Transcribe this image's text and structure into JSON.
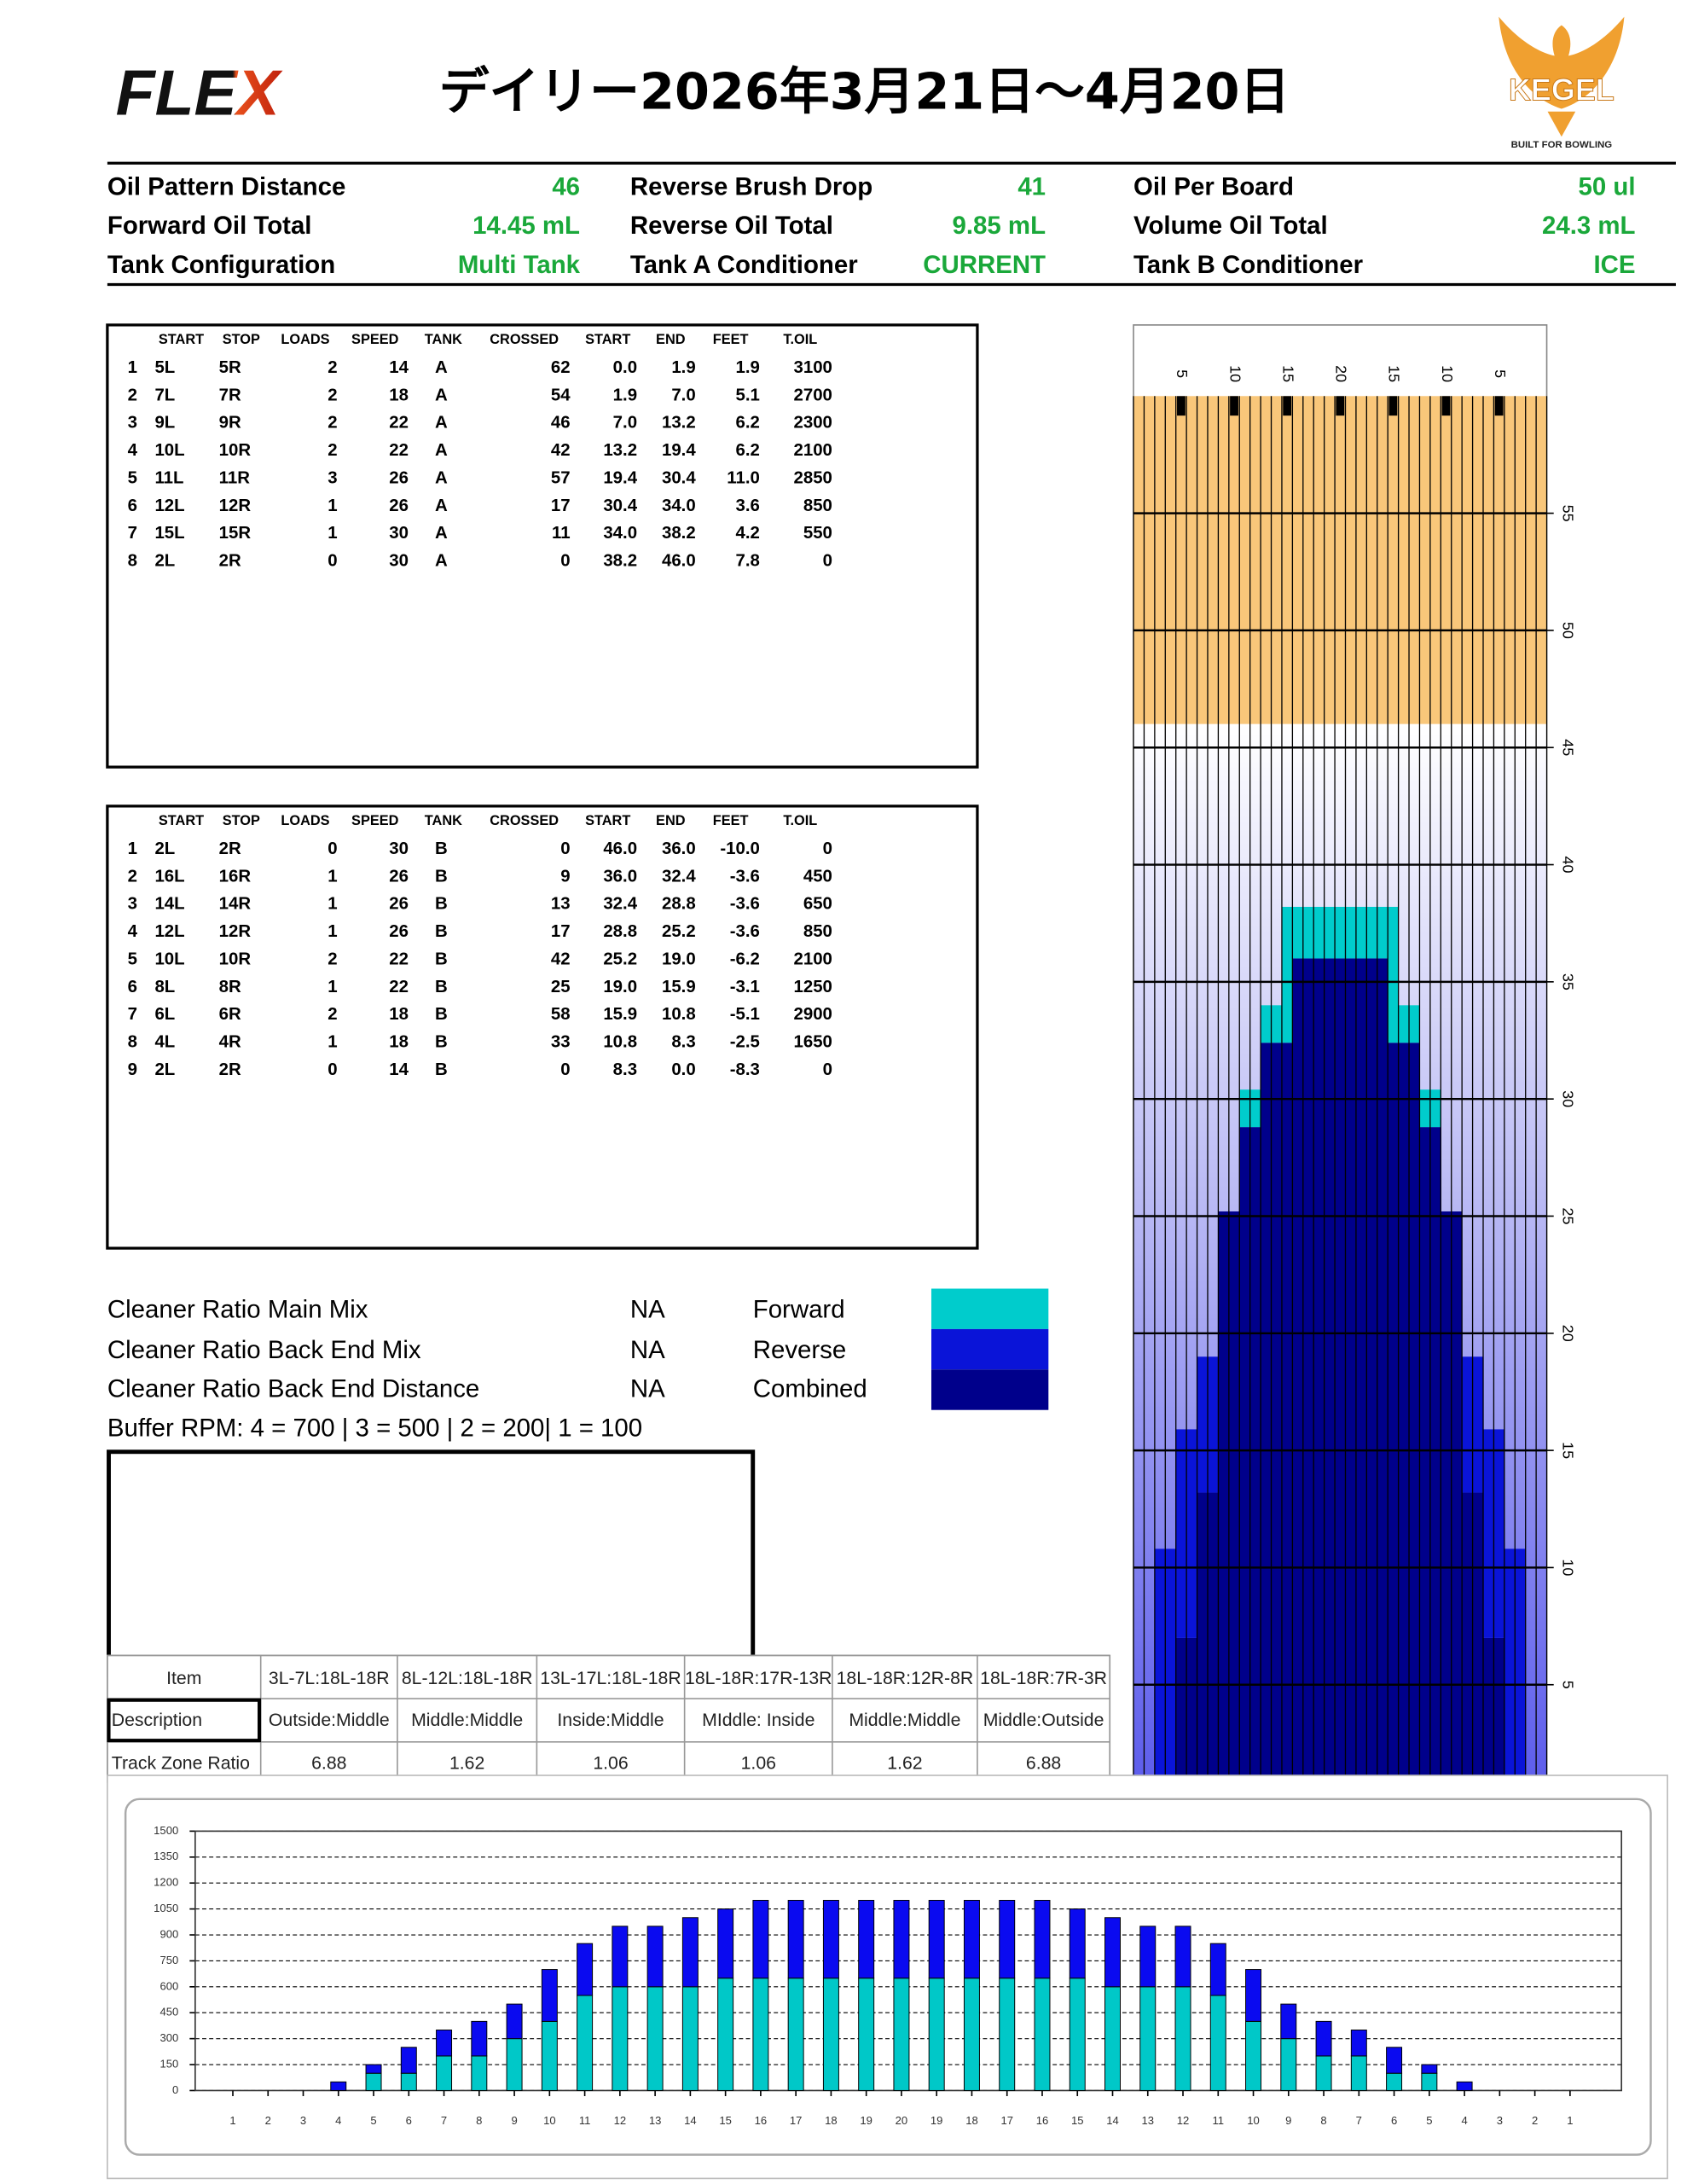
{
  "header": {
    "logo": "FLEX",
    "title": "デイリー2026年3月21日～4月20日",
    "brand": "KEGEL",
    "tagline": "BUILT FOR BOWLING"
  },
  "summary": {
    "rows": [
      [
        {
          "label": "Oil Pattern Distance",
          "value": 46
        },
        {
          "label": "Reverse Brush Drop",
          "value": 41
        },
        {
          "label": "Oil Per Board",
          "value": "50 ul"
        }
      ],
      [
        {
          "label": "Forward Oil Total",
          "value": "14.45 mL"
        },
        {
          "label": "Reverse Oil Total",
          "value": "9.85 mL"
        },
        {
          "label": "Volume Oil Total",
          "value": "24.3 mL"
        }
      ],
      [
        {
          "label": "Tank Configuration",
          "value": "Multi Tank"
        },
        {
          "label": "Tank A Conditioner",
          "value": "CURRENT"
        },
        {
          "label": "Tank B Conditioner",
          "value": "ICE"
        }
      ]
    ]
  },
  "forward_table": {
    "columns": [
      "START",
      "STOP",
      "LOADS",
      "SPEED",
      "TANK",
      "CROSSED",
      "START",
      "END",
      "FEET",
      "T.OIL"
    ],
    "rows": [
      [
        "1",
        "5L",
        "5R",
        "2",
        "14",
        "A",
        "62",
        "0.0",
        "1.9",
        "1.9",
        "3100"
      ],
      [
        "2",
        "7L",
        "7R",
        "2",
        "18",
        "A",
        "54",
        "1.9",
        "7.0",
        "5.1",
        "2700"
      ],
      [
        "3",
        "9L",
        "9R",
        "2",
        "22",
        "A",
        "46",
        "7.0",
        "13.2",
        "6.2",
        "2300"
      ],
      [
        "4",
        "10L",
        "10R",
        "2",
        "22",
        "A",
        "42",
        "13.2",
        "19.4",
        "6.2",
        "2100"
      ],
      [
        "5",
        "11L",
        "11R",
        "3",
        "26",
        "A",
        "57",
        "19.4",
        "30.4",
        "11.0",
        "2850"
      ],
      [
        "6",
        "12L",
        "12R",
        "1",
        "26",
        "A",
        "17",
        "30.4",
        "34.0",
        "3.6",
        "850"
      ],
      [
        "7",
        "15L",
        "15R",
        "1",
        "30",
        "A",
        "11",
        "34.0",
        "38.2",
        "4.2",
        "550"
      ],
      [
        "8",
        "2L",
        "2R",
        "0",
        "30",
        "A",
        "0",
        "38.2",
        "46.0",
        "7.8",
        "0"
      ]
    ]
  },
  "reverse_table": {
    "columns": [
      "START",
      "STOP",
      "LOADS",
      "SPEED",
      "TANK",
      "CROSSED",
      "START",
      "END",
      "FEET",
      "T.OIL"
    ],
    "rows": [
      [
        "1",
        "2L",
        "2R",
        "0",
        "30",
        "B",
        "0",
        "46.0",
        "36.0",
        "-10.0",
        "0"
      ],
      [
        "2",
        "16L",
        "16R",
        "1",
        "26",
        "B",
        "9",
        "36.0",
        "32.4",
        "-3.6",
        "450"
      ],
      [
        "3",
        "14L",
        "14R",
        "1",
        "26",
        "B",
        "13",
        "32.4",
        "28.8",
        "-3.6",
        "650"
      ],
      [
        "4",
        "12L",
        "12R",
        "1",
        "26",
        "B",
        "17",
        "28.8",
        "25.2",
        "-3.6",
        "850"
      ],
      [
        "5",
        "10L",
        "10R",
        "2",
        "22",
        "B",
        "42",
        "25.2",
        "19.0",
        "-6.2",
        "2100"
      ],
      [
        "6",
        "8L",
        "8R",
        "1",
        "22",
        "B",
        "25",
        "19.0",
        "15.9",
        "-3.1",
        "1250"
      ],
      [
        "7",
        "6L",
        "6R",
        "2",
        "18",
        "B",
        "58",
        "15.9",
        "10.8",
        "-5.1",
        "2900"
      ],
      [
        "8",
        "4L",
        "4R",
        "1",
        "18",
        "B",
        "33",
        "10.8",
        "8.3",
        "-2.5",
        "1650"
      ],
      [
        "9",
        "2L",
        "2R",
        "0",
        "14",
        "B",
        "0",
        "8.3",
        "0.0",
        "-8.3",
        "0"
      ]
    ]
  },
  "cleaner": {
    "rows": [
      {
        "label": "Cleaner Ratio Main Mix",
        "value": "NA"
      },
      {
        "label": "Cleaner Ratio Back End Mix",
        "value": "NA"
      },
      {
        "label": "Cleaner Ratio Back End Distance",
        "value": "NA"
      }
    ],
    "buffer_rpm": "Buffer RPM: 4 = 700 | 3 = 500 | 2 = 200| 1 = 100"
  },
  "track_zone": {
    "columns": [
      "Item",
      "3L-7L:18L-18R",
      "8L-12L:18L-18R",
      "13L-17L:18L-18R",
      "18L-18R:17R-13R",
      "18L-18R:12R-8R",
      "18L-18R:7R-3R"
    ],
    "rows": [
      [
        "Description",
        "Outside:Middle",
        "Middle:Middle",
        "Inside:Middle",
        "MIddle: Inside",
        "Middle:Middle",
        "Middle:Outside"
      ],
      [
        "Track Zone Ratio",
        "6.88",
        "1.62",
        "1.06",
        "1.06",
        "1.62",
        "6.88"
      ]
    ]
  },
  "chart_data": [
    {
      "type": "lane",
      "categories": [
        null,
        null,
        null,
        null,
        "5",
        null,
        null,
        null,
        null,
        "10",
        null,
        null,
        null,
        null,
        "15",
        null,
        null,
        null,
        null,
        "20",
        null,
        null,
        null,
        null,
        "15",
        null,
        null,
        null,
        null,
        "10",
        null,
        null,
        null,
        null,
        "5",
        null,
        null,
        null,
        null
      ],
      "ylim": [
        0,
        60
      ],
      "yticks": [
        5,
        10,
        15,
        20,
        25,
        30,
        35,
        40,
        45,
        50,
        55
      ],
      "series": [
        {
          "name": "Forward",
          "color": "#00cccc",
          "values": [
            0,
            0,
            0,
            0,
            0,
            0,
            0,
            0,
            0,
            0,
            1.6,
            1.6,
            1.6,
            1.6,
            5.8,
            2.2,
            2.2,
            2.2,
            2.2,
            2.2,
            2.2,
            2.2,
            2.2,
            2.2,
            5.8,
            1.6,
            1.6,
            1.6,
            1.6,
            0,
            0,
            0,
            0,
            0,
            0,
            0,
            0,
            0,
            0
          ]
        },
        {
          "name": "Reverse",
          "color": "#0a14d8",
          "values": [
            0,
            0,
            10.8,
            10.8,
            8.9,
            8.9,
            5.8,
            5.8,
            0,
            0,
            0,
            0,
            0,
            0,
            0,
            0,
            0,
            0,
            0,
            0,
            0,
            0,
            0,
            0,
            0,
            0,
            0,
            0,
            0,
            0,
            0,
            5.8,
            5.8,
            8.9,
            8.9,
            10.8,
            10.8,
            0,
            0
          ]
        },
        {
          "name": "Combined",
          "color": "#00008b",
          "values": [
            0,
            0,
            0,
            0,
            7,
            7,
            13.2,
            13.2,
            25.2,
            25.2,
            28.8,
            28.8,
            32.4,
            32.4,
            32.4,
            36,
            36,
            36,
            36,
            36,
            36,
            36,
            36,
            36,
            32.4,
            32.4,
            32.4,
            28.8,
            28.8,
            25.2,
            25.2,
            13.2,
            13.2,
            7,
            7,
            0,
            0,
            0,
            0
          ]
        }
      ]
    },
    {
      "type": "bar",
      "stacked": true,
      "grid": true,
      "categories": [
        "1",
        "2",
        "3",
        "4",
        "5",
        "6",
        "7",
        "8",
        "9",
        "10",
        "11",
        "12",
        "13",
        "14",
        "15",
        "16",
        "17",
        "18",
        "19",
        "20",
        "19",
        "18",
        "17",
        "16",
        "15",
        "14",
        "13",
        "12",
        "11",
        "10",
        "9",
        "8",
        "7",
        "6",
        "5",
        "4",
        "3",
        "2",
        "1"
      ],
      "ylim": [
        0,
        1500
      ],
      "yticks": [
        0,
        150,
        300,
        450,
        600,
        750,
        900,
        1050,
        1200,
        1350,
        1500
      ],
      "series": [
        {
          "color": "#00c8c8",
          "values": [
            0,
            0,
            0,
            0,
            100,
            100,
            200,
            200,
            300,
            400,
            550,
            600,
            600,
            600,
            650,
            650,
            650,
            650,
            650,
            650,
            650,
            650,
            650,
            650,
            650,
            600,
            600,
            600,
            550,
            400,
            300,
            200,
            200,
            100,
            100,
            0,
            0,
            0,
            0
          ]
        },
        {
          "color": "#0a0af0",
          "values": [
            0,
            0,
            0,
            50,
            50,
            150,
            150,
            200,
            200,
            300,
            300,
            350,
            350,
            400,
            400,
            450,
            450,
            450,
            450,
            450,
            450,
            450,
            450,
            450,
            400,
            400,
            350,
            350,
            300,
            300,
            200,
            200,
            150,
            150,
            50,
            50,
            0,
            0,
            0
          ]
        }
      ]
    }
  ]
}
